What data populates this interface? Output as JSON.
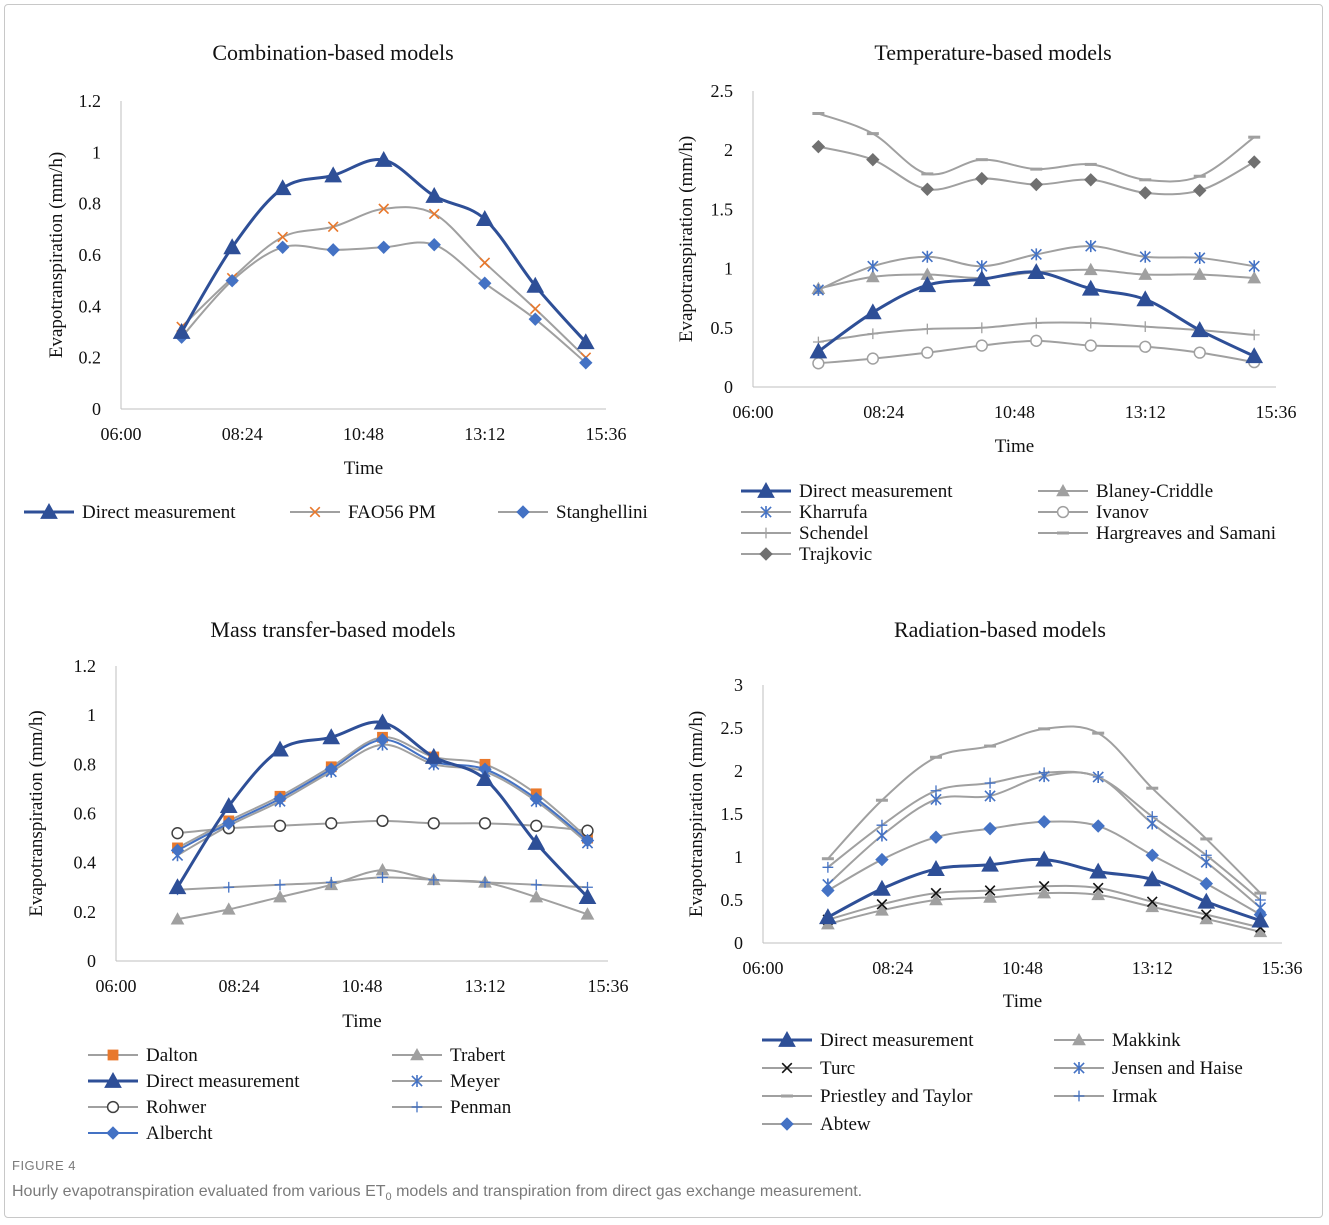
{
  "figure": {
    "label": "FIGURE 4",
    "caption_before": "Hourly evapotranspiration evaluated from various ET",
    "caption_sub": "0",
    "caption_after": " models and transpiration from direct gas exchange measurement."
  },
  "colors": {
    "direct": "#2e4f97",
    "gray": "#a0a0a0",
    "orange": "#e8782c",
    "blue": "#4472c4"
  },
  "chart_data": [
    {
      "type": "line",
      "title": "Combination-based models",
      "xlabel": "Time",
      "ylabel": "Evapotranspiration (mm/h)",
      "x_tick_labels": [
        "06:00",
        "08:24",
        "10:48",
        "13:12",
        "15:36"
      ],
      "y_tick_labels": [
        "0",
        "0.2",
        "0.4",
        "0.6",
        "0.8",
        "1",
        "1.2"
      ],
      "xlim": [
        "06:00",
        "15:36"
      ],
      "ylim": [
        0,
        1.2
      ],
      "legend_position": "bottom",
      "x": [
        "07:12",
        "08:12",
        "09:12",
        "10:12",
        "11:12",
        "12:12",
        "13:12",
        "14:12",
        "15:12"
      ],
      "series": [
        {
          "name": "Direct measurement",
          "marker": "triangle",
          "color": "#2e4f97",
          "line_color": "#2e4f97",
          "bold": true,
          "values": [
            0.3,
            0.63,
            0.86,
            0.91,
            0.97,
            0.83,
            0.74,
            0.48,
            0.26
          ]
        },
        {
          "name": "FAO56 PM",
          "marker": "x",
          "color": "#e8782c",
          "line_color": "#a0a0a0",
          "bold": false,
          "values": [
            0.32,
            0.51,
            0.67,
            0.71,
            0.78,
            0.76,
            0.57,
            0.39,
            0.2
          ]
        },
        {
          "name": "Stanghellini",
          "marker": "diamond",
          "color": "#4472c4",
          "line_color": "#a0a0a0",
          "bold": false,
          "values": [
            0.28,
            0.5,
            0.63,
            0.62,
            0.63,
            0.64,
            0.49,
            0.35,
            0.18
          ]
        }
      ]
    },
    {
      "type": "line",
      "title": "Temperature-based models",
      "xlabel": "Time",
      "ylabel": "Evapotranspiration (mm/h)",
      "x_tick_labels": [
        "06:00",
        "08:24",
        "10:48",
        "13:12",
        "15:36"
      ],
      "y_tick_labels": [
        "0",
        "0.5",
        "1",
        "1.5",
        "2",
        "2.5"
      ],
      "xlim": [
        "06:00",
        "15:36"
      ],
      "ylim": [
        0,
        2.5
      ],
      "legend_position": "bottom",
      "x": [
        "07:12",
        "08:12",
        "09:12",
        "10:12",
        "11:12",
        "12:12",
        "13:12",
        "14:12",
        "15:12"
      ],
      "series": [
        {
          "name": "Direct measurement",
          "marker": "triangle",
          "color": "#2e4f97",
          "line_color": "#2e4f97",
          "bold": true,
          "values": [
            0.3,
            0.63,
            0.86,
            0.91,
            0.97,
            0.83,
            0.74,
            0.48,
            0.26
          ]
        },
        {
          "name": "Blaney-Criddle",
          "marker": "triangle",
          "color": "#a0a0a0",
          "line_color": "#a0a0a0",
          "bold": false,
          "values": [
            0.83,
            0.93,
            0.95,
            0.92,
            0.97,
            0.99,
            0.95,
            0.95,
            0.92
          ]
        },
        {
          "name": "Kharrufa",
          "marker": "asterisk",
          "color": "#4472c4",
          "line_color": "#a0a0a0",
          "bold": false,
          "values": [
            0.82,
            1.02,
            1.1,
            1.02,
            1.12,
            1.19,
            1.1,
            1.09,
            1.02
          ]
        },
        {
          "name": "Ivanov",
          "marker": "circle",
          "color": "#a0a0a0",
          "line_color": "#a0a0a0",
          "bold": false,
          "values": [
            0.2,
            0.24,
            0.29,
            0.35,
            0.39,
            0.35,
            0.34,
            0.29,
            0.21
          ]
        },
        {
          "name": "Schendel",
          "marker": "plus",
          "color": "#a0a0a0",
          "line_color": "#a0a0a0",
          "bold": false,
          "values": [
            0.38,
            0.45,
            0.49,
            0.5,
            0.54,
            0.54,
            0.51,
            0.48,
            0.44
          ]
        },
        {
          "name": "Hargreaves and Samani",
          "marker": "dash",
          "color": "#a0a0a0",
          "line_color": "#a0a0a0",
          "bold": false,
          "values": [
            2.31,
            2.14,
            1.8,
            1.92,
            1.84,
            1.88,
            1.75,
            1.78,
            2.11
          ]
        },
        {
          "name": "Trajkovic",
          "marker": "diamond",
          "color": "#707070",
          "line_color": "#a0a0a0",
          "bold": false,
          "values": [
            2.03,
            1.92,
            1.67,
            1.76,
            1.71,
            1.75,
            1.64,
            1.66,
            1.9
          ]
        }
      ]
    },
    {
      "type": "line",
      "title": "Mass transfer-based models",
      "xlabel": "Time",
      "ylabel": "Evapotranspiration (mm/h)",
      "x_tick_labels": [
        "06:00",
        "08:24",
        "10:48",
        "13:12",
        "15:36"
      ],
      "y_tick_labels": [
        "0",
        "0.2",
        "0.4",
        "0.6",
        "0.8",
        "1",
        "1.2"
      ],
      "xlim": [
        "06:00",
        "15:36"
      ],
      "ylim": [
        0,
        1.2
      ],
      "legend_position": "bottom",
      "x": [
        "07:12",
        "08:12",
        "09:12",
        "10:12",
        "11:12",
        "12:12",
        "13:12",
        "14:12",
        "15:12"
      ],
      "series": [
        {
          "name": "Dalton",
          "marker": "square",
          "color": "#e8782c",
          "line_color": "#a0a0a0",
          "bold": false,
          "values": [
            0.46,
            0.57,
            0.67,
            0.79,
            0.91,
            0.83,
            0.8,
            0.68,
            0.5
          ]
        },
        {
          "name": "Trabert",
          "marker": "triangle",
          "color": "#a0a0a0",
          "line_color": "#a0a0a0",
          "bold": false,
          "values": [
            0.17,
            0.21,
            0.26,
            0.31,
            0.37,
            0.33,
            0.32,
            0.26,
            0.19
          ]
        },
        {
          "name": "Direct measurement",
          "marker": "triangle",
          "color": "#2e4f97",
          "line_color": "#2e4f97",
          "bold": true,
          "values": [
            0.3,
            0.63,
            0.86,
            0.91,
            0.97,
            0.83,
            0.74,
            0.48,
            0.26
          ]
        },
        {
          "name": "Meyer",
          "marker": "asterisk",
          "color": "#4472c4",
          "line_color": "#a0a0a0",
          "bold": false,
          "values": [
            0.43,
            0.55,
            0.65,
            0.77,
            0.88,
            0.8,
            0.77,
            0.65,
            0.48
          ]
        },
        {
          "name": "Rohwer",
          "marker": "circle",
          "color": "#404040",
          "line_color": "#a0a0a0",
          "bold": false,
          "values": [
            0.52,
            0.54,
            0.55,
            0.56,
            0.57,
            0.56,
            0.56,
            0.55,
            0.53
          ]
        },
        {
          "name": "Penman",
          "marker": "plus",
          "color": "#4472c4",
          "line_color": "#a0a0a0",
          "bold": false,
          "values": [
            0.29,
            0.3,
            0.31,
            0.32,
            0.34,
            0.33,
            0.32,
            0.31,
            0.3
          ]
        },
        {
          "name": "Albercht",
          "marker": "diamond",
          "color": "#4472c4",
          "line_color": "#4472c4",
          "bold": false,
          "values": [
            0.45,
            0.56,
            0.66,
            0.78,
            0.9,
            0.81,
            0.78,
            0.66,
            0.49
          ]
        }
      ]
    },
    {
      "type": "line",
      "title": "Radiation-based models",
      "xlabel": "Time",
      "ylabel": "Evapotranspiration (mm/h)",
      "x_tick_labels": [
        "06:00",
        "08:24",
        "10:48",
        "13:12",
        "15:36"
      ],
      "y_tick_labels": [
        "0",
        "0.5",
        "1",
        "1.5",
        "2",
        "2.5",
        "3"
      ],
      "xlim": [
        "06:00",
        "15:36"
      ],
      "ylim": [
        0,
        3
      ],
      "legend_position": "bottom",
      "x": [
        "07:12",
        "08:12",
        "09:12",
        "10:12",
        "11:12",
        "12:12",
        "13:12",
        "14:12",
        "15:12"
      ],
      "series": [
        {
          "name": "Direct measurement",
          "marker": "triangle",
          "color": "#2e4f97",
          "line_color": "#2e4f97",
          "bold": true,
          "values": [
            0.3,
            0.63,
            0.86,
            0.91,
            0.97,
            0.83,
            0.74,
            0.48,
            0.26
          ]
        },
        {
          "name": "Makkink",
          "marker": "triangle",
          "color": "#a0a0a0",
          "line_color": "#a0a0a0",
          "bold": false,
          "values": [
            0.22,
            0.38,
            0.5,
            0.53,
            0.58,
            0.56,
            0.42,
            0.28,
            0.13
          ]
        },
        {
          "name": "Turc",
          "marker": "x",
          "color": "#111111",
          "line_color": "#a0a0a0",
          "bold": false,
          "values": [
            0.27,
            0.45,
            0.58,
            0.61,
            0.66,
            0.64,
            0.48,
            0.33,
            0.18
          ]
        },
        {
          "name": "Jensen and Haise",
          "marker": "asterisk",
          "color": "#4472c4",
          "line_color": "#a0a0a0",
          "bold": false,
          "values": [
            0.68,
            1.25,
            1.67,
            1.71,
            1.94,
            1.93,
            1.39,
            0.94,
            0.41
          ]
        },
        {
          "name": "Priestley and Taylor",
          "marker": "dash",
          "color": "#a0a0a0",
          "line_color": "#a0a0a0",
          "bold": false,
          "values": [
            0.98,
            1.66,
            2.16,
            2.29,
            2.49,
            2.44,
            1.8,
            1.21,
            0.58
          ]
        },
        {
          "name": "Irmak",
          "marker": "plus",
          "color": "#4472c4",
          "line_color": "#a0a0a0",
          "bold": false,
          "values": [
            0.88,
            1.37,
            1.77,
            1.86,
            1.98,
            1.93,
            1.47,
            1.02,
            0.5
          ]
        },
        {
          "name": "Abtew",
          "marker": "diamond",
          "color": "#4472c4",
          "line_color": "#a0a0a0",
          "bold": false,
          "values": [
            0.61,
            0.97,
            1.23,
            1.33,
            1.41,
            1.36,
            1.02,
            0.69,
            0.33
          ]
        }
      ]
    }
  ]
}
